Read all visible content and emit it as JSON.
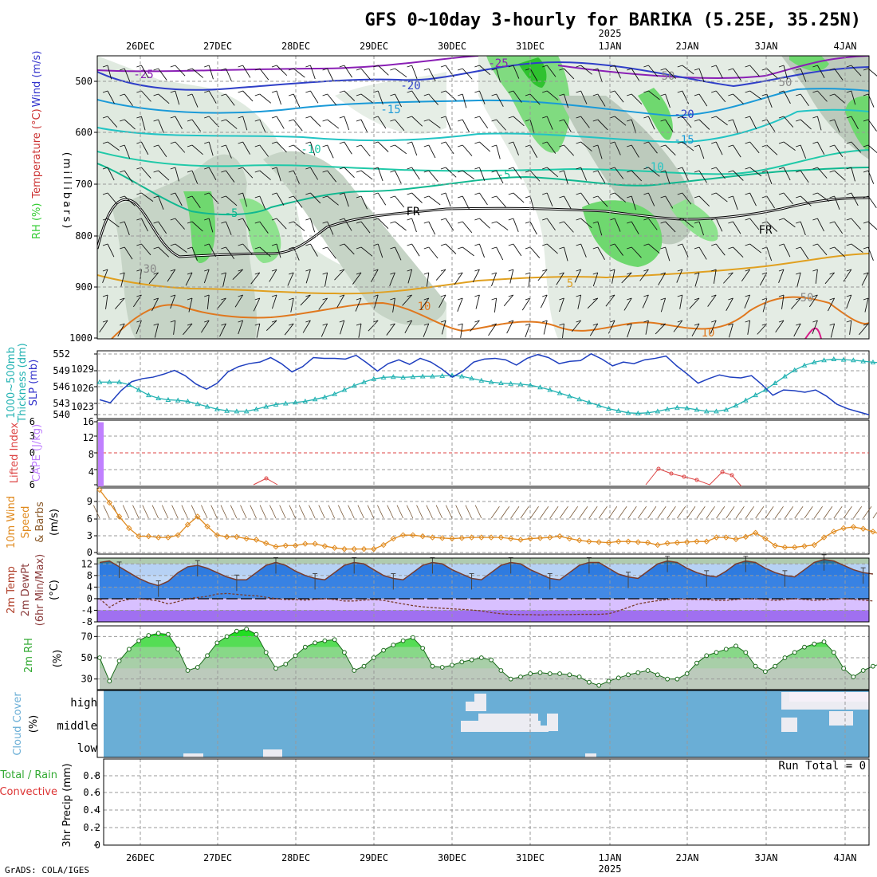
{
  "title": "GFS 0~10day 3-hourly for BARIKA (5.25E, 35.25N)",
  "year_label": "2025",
  "footer": "GrADS: COLA/IGES",
  "colors": {
    "rh": "#33cc33",
    "temp": "#cc3333",
    "wind": "#3333cc",
    "slp": "#1f3fbf",
    "thickness": "#22b2b2",
    "cape": "#c080ff",
    "lifted": "#dd4444",
    "wind10": "#e08a1e",
    "temp2m": "#2e7be0",
    "dewpt": "#b070ff",
    "rh2m": "#33cc33",
    "cloud": "#6aaed6",
    "precip": "#33aa33"
  },
  "x_axis": {
    "days": [
      "26DEC",
      "27DEC",
      "28DEC",
      "29DEC",
      "30DEC",
      "31DEC",
      "1JAN",
      "2JAN",
      "3JAN",
      "4JAN"
    ]
  },
  "panels": {
    "upper": {
      "ylabel_parts": [
        "RH (%)",
        "Temperature (°C)",
        "Wind (m/s)"
      ],
      "ylabel2": "(millibars)",
      "yticks": [
        "500",
        "600",
        "700",
        "800",
        "900",
        "1000"
      ],
      "contour_labels": [
        "-25",
        "-20",
        "-15",
        "-10",
        "-5",
        "FR",
        "5",
        "10",
        "-25",
        "-20",
        "-15",
        "-10",
        "-5",
        "FR",
        "10",
        "50",
        "30",
        "50",
        "50"
      ]
    },
    "thick": {
      "ylabel_left": "1000~500mb",
      "ylabel_left2": "Thickness (dm)",
      "ylabel_right": "SLP (mb)",
      "ticks_left": [
        "552",
        "549",
        "546",
        "543",
        "540"
      ],
      "ticks_right": [
        "1029",
        "1026",
        "1023"
      ]
    },
    "cape": {
      "ylabel_left": "Lifted Index",
      "ylabel_right": "CAPE (J/kg)",
      "ticks_left": [
        "6",
        "3",
        "0",
        "3",
        "6"
      ],
      "ticks_right": [
        "16",
        "12",
        "8",
        "4"
      ]
    },
    "wind10": {
      "ylabel1": "10m Wind",
      "ylabel2": "Speed",
      "ylabel3": "& Barbs",
      "ylabel4": "(m/s)",
      "ticks": [
        "9",
        "6",
        "3",
        "0"
      ]
    },
    "temp2m": {
      "ylabel1": "2m Temp",
      "ylabel2": "2m DewPt",
      "ylabel3": "(6hr Min/Max)",
      "ylabel4": "(°C)",
      "ticks": [
        "12",
        "8",
        "4",
        "0",
        "-4",
        "-8"
      ]
    },
    "rh2m": {
      "ylabel1": "2m RH",
      "ylabel2": "(%)",
      "ticks": [
        "70",
        "50",
        "30"
      ]
    },
    "cloud": {
      "ylabel1": "Cloud Cover",
      "ylabel2": "(%)",
      "levels": [
        "high",
        "middle",
        "low"
      ]
    },
    "precip": {
      "ylabel1": "Total / Rain",
      "ylabel2": "Convective",
      "ylabel3": "3hr Precip (mm)",
      "ticks": [
        "0.8",
        "0.6",
        "0.4",
        "0.2",
        "0"
      ],
      "run_total": "Run Total = 0"
    }
  },
  "chart_data": [
    {
      "type": "line",
      "name": "1000~500mb Thickness (dm)",
      "x_step_hours": 3,
      "ylim": [
        539.5,
        552.5
      ],
      "values": [
        546.5,
        546.5,
        546.5,
        546,
        545,
        544,
        543.4,
        543.1,
        543,
        542.8,
        542.3,
        541.8,
        541.3,
        541,
        540.9,
        540.9,
        541.3,
        541.8,
        542.2,
        542.4,
        542.6,
        542.8,
        543.2,
        543.6,
        544.2,
        545,
        545.8,
        546.5,
        547.1,
        547.4,
        547.5,
        547.4,
        547.5,
        547.6,
        547.6,
        547.7,
        547.8,
        547.6,
        547.2,
        546.8,
        546.5,
        546.3,
        546.2,
        546.1,
        545.9,
        545.5,
        545,
        544.4,
        543.8,
        543.2,
        542.6,
        542,
        541.4,
        541,
        540.6,
        540.5,
        540.6,
        540.9,
        541.3,
        541.6,
        541.5,
        541.2,
        540.9,
        540.9,
        541.2,
        542,
        543,
        544,
        545,
        546.3,
        547.6,
        548.8,
        549.7,
        550.3,
        550.7,
        550.9,
        550.8,
        550.7,
        550.5,
        550.3,
        550.2
      ]
    },
    {
      "type": "line",
      "name": "SLP (mb)",
      "x_step_hours": 3,
      "ylim": [
        1021.5,
        1030.5
      ],
      "values": [
        1024,
        1023.6,
        1025.2,
        1026.4,
        1026.8,
        1027,
        1027.4,
        1027.9,
        1027.2,
        1026.1,
        1025.4,
        1026.2,
        1027.7,
        1028.4,
        1028.8,
        1029,
        1029.6,
        1028.8,
        1027.7,
        1028.4,
        1029.6,
        1029.5,
        1029.5,
        1029.4,
        1029.9,
        1028.9,
        1027.8,
        1028.8,
        1029.3,
        1028.7,
        1029.5,
        1029,
        1028.1,
        1027,
        1027.8,
        1029,
        1029.4,
        1029.5,
        1029.3,
        1028.6,
        1029.5,
        1030,
        1029.6,
        1028.8,
        1029.1,
        1029.2,
        1030.1,
        1029.4,
        1028.5,
        1029,
        1028.8,
        1029.3,
        1029.5,
        1029.8,
        1028.5,
        1027.4,
        1026.2,
        1026.8,
        1027.3,
        1027,
        1026.9,
        1027.2,
        1026,
        1024.6,
        1025.3,
        1025.2,
        1025,
        1025.3,
        1024.5,
        1023.4,
        1022.8,
        1022.4,
        1022
      ]
    },
    {
      "type": "line",
      "name": "10m Wind Speed (m/s)",
      "x_step_hours": 3,
      "ylim": [
        0,
        11
      ],
      "values": [
        10.8,
        8.6,
        6.2,
        4.2,
        2.8,
        2.8,
        2.6,
        2.6,
        3,
        4.8,
        6.2,
        4.5,
        3,
        2.7,
        2.7,
        2.4,
        2.2,
        1.6,
        1,
        1.2,
        1.2,
        1.5,
        1.5,
        1.1,
        0.8,
        0.6,
        0.6,
        0.6,
        0.6,
        1.3,
        2.4,
        3,
        3,
        2.8,
        2.6,
        2.5,
        2.4,
        2.5,
        2.6,
        2.6,
        2.6,
        2.6,
        2.4,
        2.2,
        2.4,
        2.5,
        2.6,
        2.8,
        2.4,
        2.1,
        1.9,
        1.8,
        1.7,
        1.9,
        1.9,
        1.8,
        1.7,
        1.3,
        1.6,
        1.7,
        1.8,
        1.9,
        1.9,
        2.6,
        2.6,
        2.3,
        2.7,
        3.4,
        2.4,
        1.2,
        0.9,
        0.9,
        1.1,
        1.3,
        2.6,
        3.6,
        4.2,
        4.4,
        4.1,
        3.6,
        3,
        2.8
      ]
    },
    {
      "type": "area",
      "name": "2m Temp (°C)",
      "x_step_hours": 3,
      "ylim": [
        -8,
        14
      ],
      "values": [
        12.5,
        13,
        11,
        9,
        7,
        5.5,
        4.5,
        6,
        9,
        11,
        11.5,
        10.5,
        9,
        7.5,
        6.5,
        6.5,
        9,
        11.5,
        12.5,
        11.5,
        9.5,
        8,
        7,
        6.5,
        9,
        11.5,
        12.5,
        12,
        10,
        8,
        7,
        6.5,
        9,
        11.5,
        12.5,
        12,
        10,
        8.5,
        7,
        6.5,
        9,
        11.5,
        12.5,
        12,
        10,
        8.5,
        7,
        6.5,
        9,
        11.5,
        12.5,
        12.5,
        10.5,
        8.5,
        7.5,
        7,
        9.5,
        12,
        13,
        12.5,
        10.5,
        9,
        8,
        7.5,
        9.5,
        12,
        13,
        12.5,
        10.5,
        9,
        8,
        7.5,
        10,
        12.5,
        13.5,
        13,
        11.5,
        10,
        9,
        8.5
      ]
    },
    {
      "type": "line",
      "name": "2m DewPt (°C)",
      "x_step_hours": 3,
      "ylim": [
        -8,
        14
      ],
      "values": [
        0,
        -3,
        -1,
        -0.2,
        0,
        -0.3,
        -0.8,
        -1.8,
        -1,
        0,
        0.4,
        0.8,
        1.6,
        1.8,
        1.5,
        1.2,
        1,
        0.5,
        0,
        -0.3,
        -0.3,
        -0.5,
        -0.2,
        0,
        -0.3,
        -0.8,
        -0.8,
        -0.5,
        -0.3,
        -0.6,
        -1.2,
        -1.8,
        -2.4,
        -2.8,
        -3.1,
        -3.3,
        -3.5,
        -3.7,
        -3.9,
        -4.2,
        -4.8,
        -5.2,
        -5.4,
        -5.5,
        -5.5,
        -5.6,
        -5.5,
        -5.5,
        -5.5,
        -5.4,
        -5.4,
        -5.4,
        -5.2,
        -4.2,
        -3,
        -1.8,
        -1.2,
        -0.7,
        -0.3,
        0,
        -0.2,
        -0.3,
        -0.3,
        -0.6,
        -0.6,
        -0.3,
        0,
        -0.1,
        -0.3,
        -0.6,
        -0.3,
        0,
        -0.3,
        -0.6,
        -0.4,
        -0.2,
        0,
        -0.2,
        -0.5,
        -0.8
      ]
    },
    {
      "type": "area",
      "name": "2m RH (%)",
      "x_step_hours": 3,
      "ylim": [
        20,
        80
      ],
      "values": [
        50,
        28,
        47,
        58,
        66,
        71,
        73,
        72,
        58,
        38,
        41,
        52,
        64,
        70,
        75,
        77,
        72,
        55,
        40,
        44,
        52,
        60,
        64,
        66,
        67,
        55,
        38,
        42,
        50,
        57,
        62,
        66,
        69,
        59,
        42,
        41,
        43,
        46,
        48,
        50,
        48,
        38,
        30,
        32,
        35,
        36,
        35,
        35,
        34,
        32,
        27,
        24,
        28,
        31,
        34,
        36,
        38,
        34,
        30,
        30,
        35,
        45,
        52,
        55,
        58,
        61,
        55,
        42,
        37,
        42,
        50,
        55,
        60,
        63,
        65,
        55,
        40,
        32,
        38,
        42,
        45,
        48,
        50,
        52,
        54
      ]
    },
    {
      "type": "line",
      "name": "CAPE (J/kg)",
      "x_step_hours": 3,
      "ylim": [
        0,
        16
      ],
      "values": [
        15.5,
        0,
        0,
        0,
        0,
        0,
        0,
        0,
        0,
        0,
        0,
        0,
        0,
        0,
        0,
        0,
        0,
        0,
        0,
        0,
        0,
        0,
        0,
        0,
        0,
        0,
        0,
        0,
        0,
        0,
        0,
        0,
        0,
        0,
        0,
        0,
        0,
        0,
        0,
        0,
        0,
        0,
        0,
        0,
        0,
        0,
        0,
        0,
        0,
        0,
        0,
        0,
        0,
        0,
        0,
        0,
        0,
        0,
        0,
        0,
        0,
        0,
        0,
        0,
        0,
        0,
        0,
        0,
        0,
        0,
        0,
        0,
        0,
        0,
        0,
        0,
        0,
        0,
        0,
        0,
        0
      ]
    },
    {
      "type": "bar",
      "name": "3hr Precip (mm)",
      "x_step_hours": 3,
      "ylim": [
        0,
        1
      ],
      "values": []
    }
  ]
}
